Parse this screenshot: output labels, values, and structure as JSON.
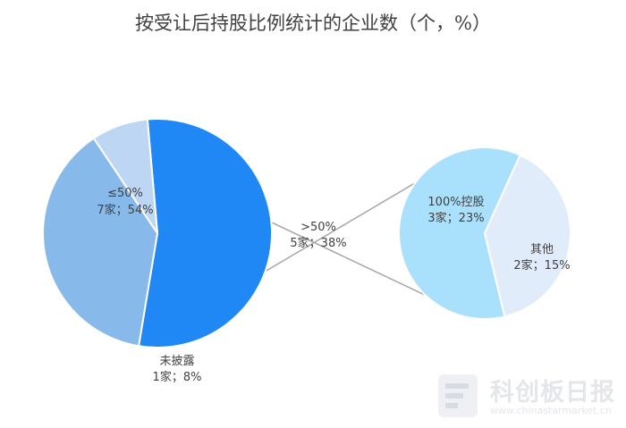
{
  "chart_data": {
    "type": "pie",
    "title": "按受让后持股比例统计的企业数（个，%）",
    "main_pie": {
      "slices": [
        {
          "line1": "≤50%",
          "line2": "7家；54%",
          "value": 54,
          "color": "#1f88f4"
        },
        {
          "line1": ">50%",
          "line2": "5家；38%",
          "value": 38,
          "color": "#88b9eb"
        },
        {
          "line1": "未披露",
          "line2": "1家；8%",
          "value": 8,
          "color": "#bcd6f4"
        }
      ]
    },
    "sub_pie": {
      "slices": [
        {
          "line1": "100%控股",
          "line2": "3家；23%",
          "value": 23,
          "color": "#a9e0fc"
        },
        {
          "line1": "其他",
          "line2": "2家；15%",
          "value": 15,
          "color": "#e1ecfa"
        }
      ]
    }
  },
  "watermark": {
    "name": "科创板日报",
    "url": "www.chinastarmarket.cn"
  }
}
